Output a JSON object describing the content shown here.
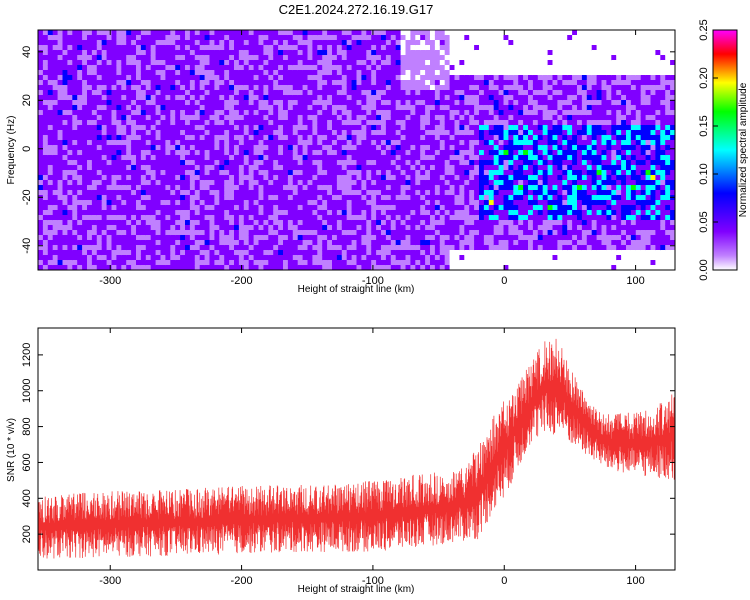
{
  "title": "C2E1.2024.272.16.19.G17",
  "chart_data": [
    {
      "type": "heatmap",
      "xlabel": "Height of straight line (km)",
      "ylabel": "Frequency (Hz)",
      "xlim": [
        -355,
        130
      ],
      "ylim": [
        -50,
        49
      ],
      "x_ticks": [
        -300,
        -200,
        -100,
        0,
        100
      ],
      "y_ticks": [
        -40,
        -20,
        0,
        20,
        40
      ],
      "colorbar": {
        "label": "Normalized spectral amplitude",
        "range": [
          0,
          0.25
        ],
        "ticks": [
          "0.00",
          "0.05",
          "0.10",
          "0.15",
          "0.20",
          "0.25"
        ],
        "colormap": [
          "#ffffff",
          "#8000ff",
          "#0000ff",
          "#00ffff",
          "#00ff00",
          "#ffff00",
          "#ff0000",
          "#ff00ff"
        ]
      },
      "regions": [
        {
          "x_range": [
            -355,
            -40
          ],
          "freq_range": [
            -50,
            49
          ],
          "mean_amplitude": 0.05
        },
        {
          "x_range": [
            -20,
            130
          ],
          "freq_range": [
            -30,
            10
          ],
          "mean_amplitude": 0.1
        },
        {
          "x_range": [
            -40,
            130
          ],
          "freq_range": [
            30,
            49
          ],
          "mean_amplitude": 0.0
        },
        {
          "x_range": [
            -40,
            130
          ],
          "freq_range": [
            -50,
            -42
          ],
          "mean_amplitude": 0.0
        }
      ]
    },
    {
      "type": "line",
      "xlabel": "Height of straight line (km)",
      "ylabel": "SNR (10 * v/v)",
      "xlim": [
        -355,
        130
      ],
      "ylim": [
        0,
        1350
      ],
      "x_ticks": [
        -300,
        -200,
        -100,
        0,
        100
      ],
      "y_ticks": [
        200,
        400,
        600,
        800,
        1000,
        1200
      ],
      "color": "#f03030",
      "envelope": {
        "x": [
          -355,
          -300,
          -250,
          -200,
          -150,
          -100,
          -80,
          -60,
          -40,
          -30,
          -20,
          -10,
          0,
          10,
          20,
          30,
          40,
          50,
          60,
          70,
          80,
          90,
          100,
          110,
          120,
          130
        ],
        "lower": [
          60,
          70,
          80,
          90,
          100,
          100,
          110,
          130,
          150,
          160,
          170,
          300,
          400,
          550,
          700,
          750,
          750,
          700,
          650,
          600,
          550,
          540,
          520,
          520,
          510,
          500
        ],
        "upper": [
          420,
          440,
          450,
          470,
          480,
          500,
          520,
          540,
          560,
          600,
          680,
          850,
          950,
          1050,
          1150,
          1280,
          1300,
          1150,
          1000,
          900,
          870,
          880,
          880,
          900,
          950,
          1000
        ]
      }
    }
  ]
}
